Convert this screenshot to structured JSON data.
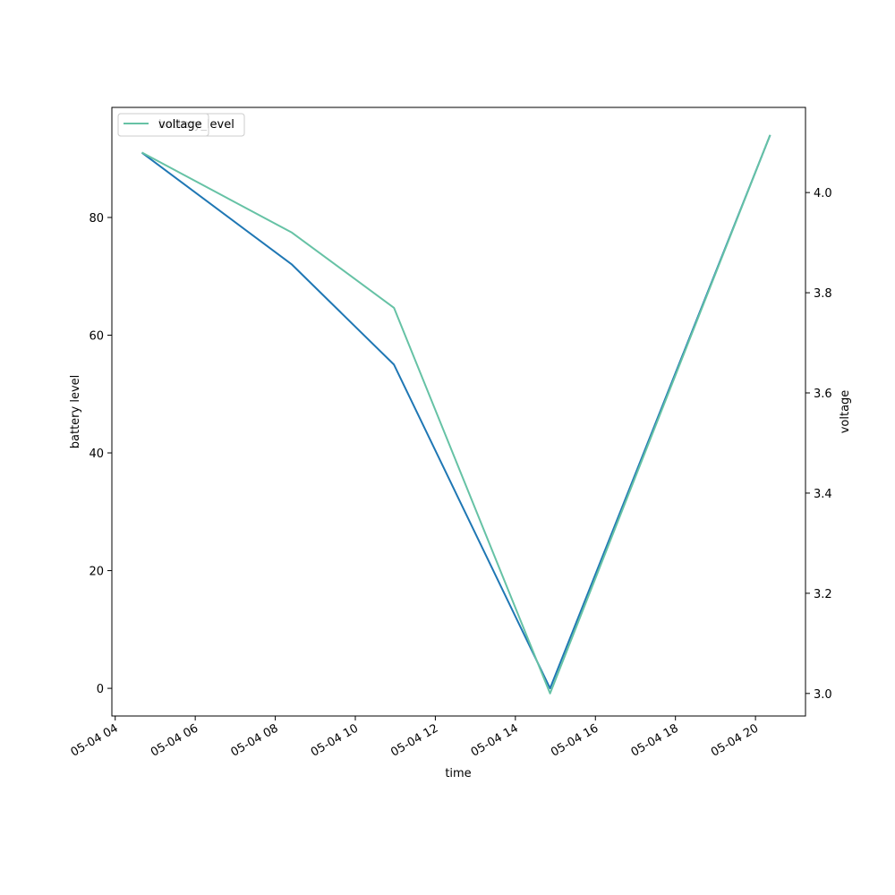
{
  "chart_data": {
    "type": "line",
    "x_axis": {
      "label": "time",
      "type": "datetime",
      "range": [
        "2023-05-04T03:55:00",
        "2023-05-04T21:15:00"
      ],
      "ticks": [
        {
          "value": "2023-05-04T04:00:00",
          "label": "05-04 04"
        },
        {
          "value": "2023-05-04T06:00:00",
          "label": "05-04 06"
        },
        {
          "value": "2023-05-04T08:00:00",
          "label": "05-04 08"
        },
        {
          "value": "2023-05-04T10:00:00",
          "label": "05-04 10"
        },
        {
          "value": "2023-05-04T12:00:00",
          "label": "05-04 12"
        },
        {
          "value": "2023-05-04T14:00:00",
          "label": "05-04 14"
        },
        {
          "value": "2023-05-04T16:00:00",
          "label": "05-04 16"
        },
        {
          "value": "2023-05-04T18:00:00",
          "label": "05-04 18"
        },
        {
          "value": "2023-05-04T20:00:00",
          "label": "05-04 20"
        }
      ]
    },
    "y_left": {
      "label": "battery level",
      "range": [
        -4.7,
        98.7
      ],
      "ticks": [
        0,
        20,
        40,
        60,
        80
      ]
    },
    "y_right": {
      "label": "voltage",
      "range": [
        2.955,
        4.17
      ],
      "ticks": [
        "3.0",
        "3.2",
        "3.4",
        "3.6",
        "3.8",
        "4.0"
      ]
    },
    "series": [
      {
        "name": "battery_level",
        "axis": "left",
        "color": "#1f77b4",
        "points": [
          {
            "x": "2023-05-04T04:40:00",
            "y": 91
          },
          {
            "x": "2023-05-04T08:25:00",
            "y": 72
          },
          {
            "x": "2023-05-04T10:58:00",
            "y": 55
          },
          {
            "x": "2023-05-04T14:52:00",
            "y": 0
          },
          {
            "x": "2023-05-04T20:22:00",
            "y": 94
          }
        ]
      },
      {
        "name": "voltage",
        "axis": "right",
        "color": "#66c2a5",
        "points": [
          {
            "x": "2023-05-04T04:40:00",
            "y": 4.08
          },
          {
            "x": "2023-05-04T08:25:00",
            "y": 3.92
          },
          {
            "x": "2023-05-04T10:58:00",
            "y": 3.77
          },
          {
            "x": "2023-05-04T14:52:00",
            "y": 3.0
          },
          {
            "x": "2023-05-04T20:22:00",
            "y": 4.115
          }
        ]
      }
    ],
    "legends": [
      {
        "placement": "top-left",
        "entries": [
          {
            "label": "battery_level",
            "color": "#1f77b4"
          }
        ]
      },
      {
        "placement": "top-left",
        "entries": [
          {
            "label": "voltage",
            "color": "#66c2a5"
          }
        ]
      }
    ],
    "grid": false
  }
}
